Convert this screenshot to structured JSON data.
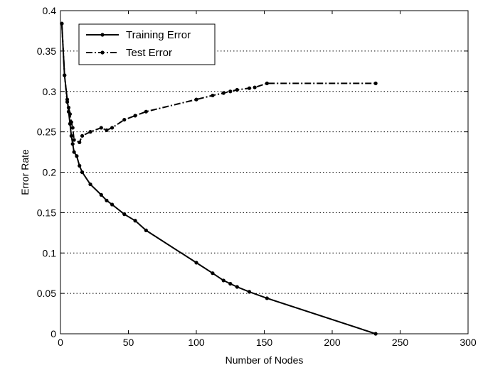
{
  "chart_data": {
    "type": "line",
    "xlabel": "Number of Nodes",
    "ylabel": "Error Rate",
    "xlim": [
      0,
      300
    ],
    "ylim": [
      0,
      0.4
    ],
    "xticks": [
      0,
      50,
      100,
      150,
      200,
      250,
      300
    ],
    "yticks": [
      0,
      0.05,
      0.1,
      0.15,
      0.2,
      0.25,
      0.3,
      0.35,
      0.4
    ],
    "xtick_labels": [
      "0",
      "50",
      "100",
      "150",
      "200",
      "250",
      "300"
    ],
    "ytick_labels": [
      "0",
      "0.05",
      "0.1",
      "0.15",
      "0.2",
      "0.25",
      "0.3",
      "0.35",
      "0.4"
    ],
    "grid": "horizontal dotted",
    "legend_position": "top-left",
    "series": [
      {
        "name": "Training Error",
        "style": "solid",
        "color": "#000000",
        "x": [
          1,
          3,
          5,
          6,
          7,
          8,
          9,
          10,
          12,
          14,
          16,
          22,
          30,
          34,
          38,
          47,
          55,
          63,
          100,
          112,
          120,
          125,
          130,
          139,
          152,
          232
        ],
        "y": [
          0.384,
          0.32,
          0.29,
          0.275,
          0.26,
          0.245,
          0.235,
          0.225,
          0.22,
          0.208,
          0.2,
          0.185,
          0.172,
          0.165,
          0.16,
          0.148,
          0.14,
          0.128,
          0.088,
          0.075,
          0.066,
          0.062,
          0.058,
          0.052,
          0.044,
          0
        ]
      },
      {
        "name": "Test Error",
        "style": "dash-dot",
        "color": "#000000",
        "x": [
          1,
          3,
          5,
          6,
          7,
          8,
          9,
          10,
          14,
          16,
          22,
          30,
          34,
          38,
          47,
          55,
          63,
          100,
          112,
          120,
          125,
          130,
          139,
          143,
          152,
          232
        ],
        "y": [
          0.384,
          0.32,
          0.287,
          0.28,
          0.272,
          0.262,
          0.255,
          0.24,
          0.237,
          0.245,
          0.25,
          0.255,
          0.252,
          0.255,
          0.265,
          0.27,
          0.275,
          0.29,
          0.295,
          0.298,
          0.3,
          0.302,
          0.304,
          0.305,
          0.31,
          0.31
        ]
      }
    ]
  }
}
